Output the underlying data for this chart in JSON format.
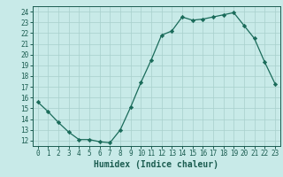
{
  "x": [
    0,
    1,
    2,
    3,
    4,
    5,
    6,
    7,
    8,
    9,
    10,
    11,
    12,
    13,
    14,
    15,
    16,
    17,
    18,
    19,
    20,
    21,
    22,
    23
  ],
  "y": [
    15.6,
    14.7,
    13.7,
    12.8,
    12.1,
    12.1,
    11.9,
    11.8,
    13.0,
    15.1,
    17.4,
    19.5,
    21.8,
    22.2,
    23.5,
    23.2,
    23.3,
    23.5,
    23.7,
    23.9,
    22.7,
    21.5,
    19.3,
    17.3
  ],
  "line_color": "#1a6b5a",
  "marker": "D",
  "marker_size": 2.2,
  "background_color": "#c8eae8",
  "grid_color": "#a8d0cc",
  "xlabel": "Humidex (Indice chaleur)",
  "xlim": [
    -0.5,
    23.5
  ],
  "ylim": [
    11.5,
    24.5
  ],
  "yticks": [
    12,
    13,
    14,
    15,
    16,
    17,
    18,
    19,
    20,
    21,
    22,
    23,
    24
  ],
  "xticks": [
    0,
    1,
    2,
    3,
    4,
    5,
    6,
    7,
    8,
    9,
    10,
    11,
    12,
    13,
    14,
    15,
    16,
    17,
    18,
    19,
    20,
    21,
    22,
    23
  ],
  "tick_label_fontsize": 5.5,
  "xlabel_fontsize": 7,
  "tick_color": "#1a5c50",
  "axis_color": "#1a5c50",
  "linewidth": 0.9
}
